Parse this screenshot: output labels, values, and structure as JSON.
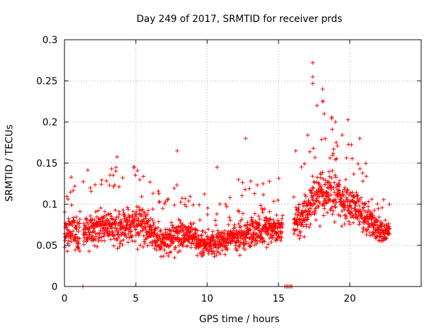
{
  "chart_data": {
    "type": "scatter",
    "title": "Day 249 of 2017, SRMTID for receiver prds",
    "xlabel": "GPS time / hours",
    "ylabel": "SRMTID / TECUs",
    "xlim": [
      0,
      25
    ],
    "ylim": [
      0,
      0.3
    ],
    "xticks": [
      0,
      5,
      10,
      15,
      20
    ],
    "xtick_labels": [
      "0",
      "5",
      "10",
      "15",
      "20"
    ],
    "yticks": [
      0,
      0.05,
      0.1,
      0.15,
      0.2,
      0.25,
      0.3
    ],
    "ytick_labels": [
      "0",
      "0.05",
      "0.1",
      "0.15",
      "0.2",
      "0.25",
      "0.3"
    ],
    "grid": true,
    "marker": "+",
    "color": "#ff0000",
    "series": [
      {
        "name": "SRMTID",
        "envelope": [
          {
            "x": 0.0,
            "center": 0.065,
            "spread": 0.03
          },
          {
            "x": 1.0,
            "center": 0.065,
            "spread": 0.035
          },
          {
            "x": 2.0,
            "center": 0.07,
            "spread": 0.035
          },
          {
            "x": 3.0,
            "center": 0.075,
            "spread": 0.04
          },
          {
            "x": 4.0,
            "center": 0.072,
            "spread": 0.035
          },
          {
            "x": 5.0,
            "center": 0.078,
            "spread": 0.04
          },
          {
            "x": 6.0,
            "center": 0.068,
            "spread": 0.035
          },
          {
            "x": 7.0,
            "center": 0.055,
            "spread": 0.03
          },
          {
            "x": 8.0,
            "center": 0.062,
            "spread": 0.035
          },
          {
            "x": 9.0,
            "center": 0.06,
            "spread": 0.03
          },
          {
            "x": 10.0,
            "center": 0.05,
            "spread": 0.025
          },
          {
            "x": 11.0,
            "center": 0.055,
            "spread": 0.025
          },
          {
            "x": 12.0,
            "center": 0.06,
            "spread": 0.03
          },
          {
            "x": 13.0,
            "center": 0.065,
            "spread": 0.035
          },
          {
            "x": 14.0,
            "center": 0.068,
            "spread": 0.035
          },
          {
            "x": 15.0,
            "center": 0.07,
            "spread": 0.03
          },
          {
            "x": 16.0,
            "center": 0.075,
            "spread": 0.035
          },
          {
            "x": 17.0,
            "center": 0.09,
            "spread": 0.04
          },
          {
            "x": 18.0,
            "center": 0.115,
            "spread": 0.05
          },
          {
            "x": 19.0,
            "center": 0.11,
            "spread": 0.045
          },
          {
            "x": 20.0,
            "center": 0.1,
            "spread": 0.045
          },
          {
            "x": 21.0,
            "center": 0.085,
            "spread": 0.035
          },
          {
            "x": 22.0,
            "center": 0.07,
            "spread": 0.025
          },
          {
            "x": 22.8,
            "center": 0.065,
            "spread": 0.02
          }
        ],
        "gaps": [
          [
            1.1,
            1.3
          ],
          [
            15.3,
            16.05
          ]
        ],
        "sample_step": 0.012,
        "spikes": [
          {
            "x": 4.9,
            "y": 0.145
          },
          {
            "x": 7.9,
            "y": 0.165
          },
          {
            "x": 12.7,
            "y": 0.18
          },
          {
            "x": 12.2,
            "y": 0.13
          },
          {
            "x": 16.2,
            "y": 0.165
          },
          {
            "x": 17.4,
            "y": 0.272
          },
          {
            "x": 17.4,
            "y": 0.255
          },
          {
            "x": 17.4,
            "y": 0.247
          },
          {
            "x": 17.7,
            "y": 0.22
          },
          {
            "x": 18.1,
            "y": 0.24
          },
          {
            "x": 18.1,
            "y": 0.225
          },
          {
            "x": 18.2,
            "y": 0.21
          },
          {
            "x": 19.0,
            "y": 0.2
          },
          {
            "x": 20.7,
            "y": 0.18
          },
          {
            "x": 3.3,
            "y": 0.143
          },
          {
            "x": 1.8,
            "y": 0.12
          },
          {
            "x": 10.7,
            "y": 0.145
          },
          {
            "x": 13.9,
            "y": 0.09
          }
        ],
        "zero_points": [
          {
            "x": 1.3,
            "y": 0.0
          },
          {
            "x": 15.45,
            "y": 0.0
          },
          {
            "x": 15.55,
            "y": 0.0
          },
          {
            "x": 15.65,
            "y": 0.0
          },
          {
            "x": 15.75,
            "y": 0.0
          },
          {
            "x": 15.85,
            "y": 0.0
          },
          {
            "x": 15.95,
            "y": 0.0
          }
        ]
      }
    ]
  }
}
